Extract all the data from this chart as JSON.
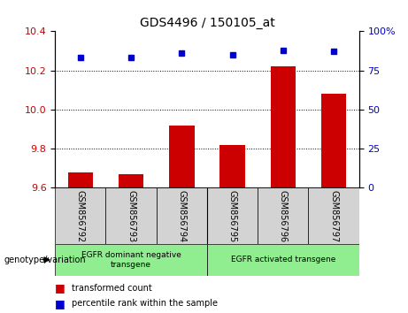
{
  "title": "GDS4496 / 150105_at",
  "categories": [
    "GSM856792",
    "GSM856793",
    "GSM856794",
    "GSM856795",
    "GSM856796",
    "GSM856797"
  ],
  "red_values": [
    9.68,
    9.67,
    9.92,
    9.82,
    10.22,
    10.08
  ],
  "blue_values": [
    83,
    83,
    86,
    85,
    88,
    87
  ],
  "ylim_left": [
    9.6,
    10.4
  ],
  "ylim_right": [
    0,
    100
  ],
  "yticks_left": [
    9.6,
    9.8,
    10.0,
    10.2,
    10.4
  ],
  "yticks_right": [
    0,
    25,
    50,
    75,
    100
  ],
  "group1_label": "EGFR dominant negative\ntransgene",
  "group2_label": "EGFR activated transgene",
  "group_color": "#90EE90",
  "sample_bg_color": "#d3d3d3",
  "red_color": "#CC0000",
  "blue_color": "#0000CC",
  "bar_width": 0.5,
  "legend1": "transformed count",
  "legend2": "percentile rank within the sample",
  "genotype_label": "genotype/variation"
}
